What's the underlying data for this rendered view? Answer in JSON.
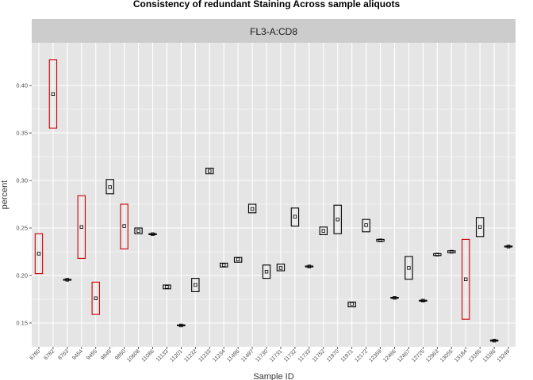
{
  "chart_data": {
    "type": "boxplot",
    "title": "Consistency of redundant Staining Across sample aliquots",
    "facet_label": "FL3-A:CD8",
    "xlabel": "Sample ID",
    "ylabel": "percent",
    "ylim": [
      0.125,
      0.445
    ],
    "yticks": [
      0.15,
      0.2,
      0.25,
      0.3,
      0.35,
      0.4
    ],
    "ytick_labels": [
      "0.15",
      "0.20",
      "0.25",
      "0.30",
      "0.35",
      "0.40"
    ],
    "grid": true,
    "colors": {
      "panel_background": "#e5e5e5",
      "strip_background": "#cccccc",
      "grid": "#ffffff",
      "normal_box": "#000000",
      "flagged_box": "#cc0000"
    },
    "boxes": [
      {
        "category": "6780",
        "low": 0.202,
        "high": 0.244,
        "center": 0.223,
        "flagged": true
      },
      {
        "category": "6782",
        "low": 0.355,
        "high": 0.427,
        "center": 0.391,
        "flagged": true
      },
      {
        "category": "8763",
        "low": 0.195,
        "high": 0.196,
        "center": 0.1955,
        "flagged": false
      },
      {
        "category": "9454",
        "low": 0.218,
        "high": 0.284,
        "center": 0.251,
        "flagged": true
      },
      {
        "category": "9455",
        "low": 0.159,
        "high": 0.193,
        "center": 0.176,
        "flagged": true
      },
      {
        "category": "9849",
        "low": 0.286,
        "high": 0.301,
        "center": 0.293,
        "flagged": false
      },
      {
        "category": "9850",
        "low": 0.228,
        "high": 0.275,
        "center": 0.252,
        "flagged": true
      },
      {
        "category": "10608",
        "low": 0.244,
        "high": 0.25,
        "center": 0.247,
        "flagged": false
      },
      {
        "category": "11086",
        "low": 0.243,
        "high": 0.244,
        "center": 0.2435,
        "flagged": false
      },
      {
        "category": "11133",
        "low": 0.186,
        "high": 0.19,
        "center": 0.188,
        "flagged": false
      },
      {
        "category": "11201",
        "low": 0.147,
        "high": 0.148,
        "center": 0.1475,
        "flagged": false
      },
      {
        "category": "11232",
        "low": 0.183,
        "high": 0.197,
        "center": 0.19,
        "flagged": false
      },
      {
        "category": "11233",
        "low": 0.307,
        "high": 0.313,
        "center": 0.31,
        "flagged": false
      },
      {
        "category": "11234",
        "low": 0.209,
        "high": 0.213,
        "center": 0.211,
        "flagged": false
      },
      {
        "category": "11496",
        "low": 0.214,
        "high": 0.219,
        "center": 0.217,
        "flagged": false
      },
      {
        "category": "11497",
        "low": 0.266,
        "high": 0.275,
        "center": 0.27,
        "flagged": false
      },
      {
        "category": "11730",
        "low": 0.197,
        "high": 0.211,
        "center": 0.204,
        "flagged": false
      },
      {
        "category": "11731",
        "low": 0.205,
        "high": 0.212,
        "center": 0.208,
        "flagged": false
      },
      {
        "category": "11732",
        "low": 0.252,
        "high": 0.271,
        "center": 0.262,
        "flagged": false
      },
      {
        "category": "11733",
        "low": 0.209,
        "high": 0.21,
        "center": 0.2095,
        "flagged": false
      },
      {
        "category": "11752",
        "low": 0.243,
        "high": 0.251,
        "center": 0.247,
        "flagged": false
      },
      {
        "category": "11970",
        "low": 0.244,
        "high": 0.274,
        "center": 0.259,
        "flagged": false
      },
      {
        "category": "11971",
        "low": 0.167,
        "high": 0.172,
        "center": 0.17,
        "flagged": false
      },
      {
        "category": "12172",
        "low": 0.246,
        "high": 0.259,
        "center": 0.253,
        "flagged": false
      },
      {
        "category": "12359",
        "low": 0.236,
        "high": 0.238,
        "center": 0.237,
        "flagged": false
      },
      {
        "category": "12466",
        "low": 0.176,
        "high": 0.177,
        "center": 0.1765,
        "flagged": false
      },
      {
        "category": "12467",
        "low": 0.196,
        "high": 0.22,
        "center": 0.208,
        "flagged": false
      },
      {
        "category": "12725",
        "low": 0.173,
        "high": 0.174,
        "center": 0.1735,
        "flagged": false
      },
      {
        "category": "12963",
        "low": 0.221,
        "high": 0.223,
        "center": 0.222,
        "flagged": false
      },
      {
        "category": "13055",
        "low": 0.224,
        "high": 0.226,
        "center": 0.225,
        "flagged": false
      },
      {
        "category": "13184",
        "low": 0.154,
        "high": 0.238,
        "center": 0.196,
        "flagged": true
      },
      {
        "category": "13185",
        "low": 0.241,
        "high": 0.261,
        "center": 0.251,
        "flagged": false
      },
      {
        "category": "13186",
        "low": 0.131,
        "high": 0.132,
        "center": 0.1315,
        "flagged": false
      },
      {
        "category": "13249",
        "low": 0.23,
        "high": 0.231,
        "center": 0.2305,
        "flagged": false
      }
    ]
  }
}
